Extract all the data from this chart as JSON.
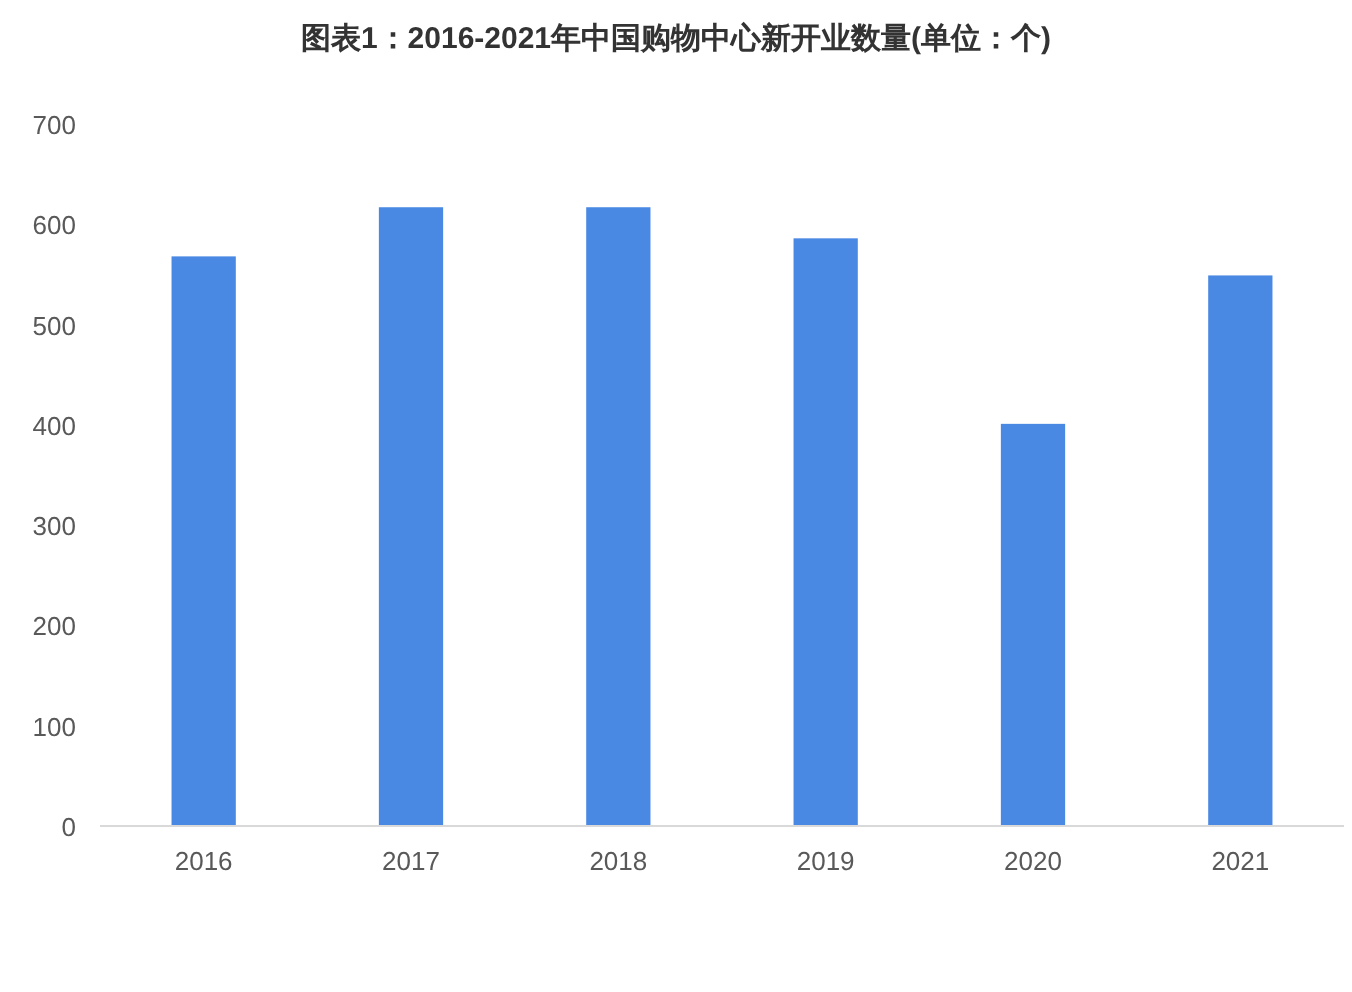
{
  "chart_data": {
    "type": "bar",
    "title": "图表1：2016-2021年中国购物中心新开业数量(单位：个)",
    "categories": [
      "2016",
      "2017",
      "2018",
      "2019",
      "2020",
      "2021"
    ],
    "values": [
      568,
      617,
      617,
      586,
      401,
      549
    ],
    "color": "#4a89e3",
    "ylim": [
      0,
      700
    ],
    "yticks": [
      0,
      100,
      200,
      300,
      400,
      500,
      600,
      700
    ],
    "grid": false
  }
}
